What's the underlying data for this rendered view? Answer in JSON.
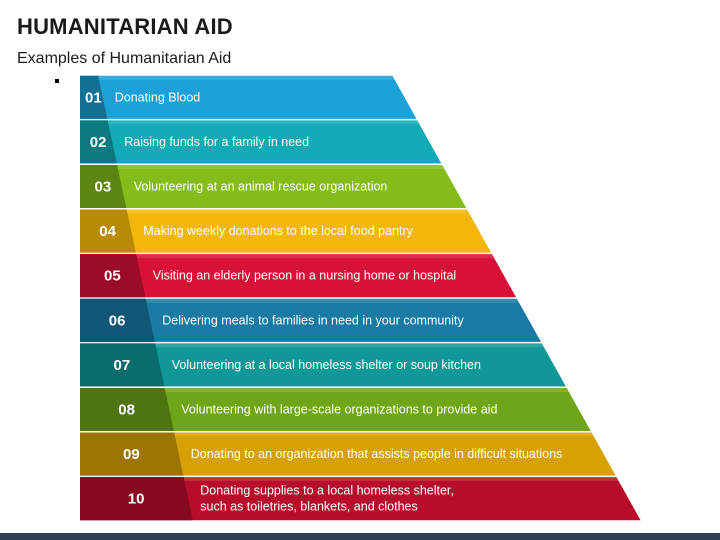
{
  "header": {
    "title": "HUMANITARIAN AID",
    "subtitle": "Examples of Humanitarian Aid"
  },
  "steps": [
    {
      "number": "01",
      "lines": [
        "Donating Blood"
      ],
      "color": "#1ba1d8",
      "dark": "#136f96"
    },
    {
      "number": "02",
      "lines": [
        "Raising funds for a family in need"
      ],
      "color": "#12aab4",
      "dark": "#0c7880"
    },
    {
      "number": "03",
      "lines": [
        "Volunteering at an animal rescue organization"
      ],
      "color": "#84bc1c",
      "dark": "#5d8513"
    },
    {
      "number": "04",
      "lines": [
        "Making weekly donations to the local food pantry"
      ],
      "color": "#f2b70a",
      "dark": "#b88a06"
    },
    {
      "number": "05",
      "lines": [
        "Visiting an elderly person in a nursing home or hospital"
      ],
      "color": "#d81136",
      "dark": "#9a0c27"
    },
    {
      "number": "06",
      "lines": [
        "Delivering meals to families in need in your community"
      ],
      "color": "#1a7aa3",
      "dark": "#115675"
    },
    {
      "number": "07",
      "lines": [
        "Volunteering at a local homeless shelter or soup kitchen"
      ],
      "color": "#109898",
      "dark": "#0a6c6c"
    },
    {
      "number": "08",
      "lines": [
        "Volunteering with large-scale organizations to provide aid"
      ],
      "color": "#6fa518",
      "dark": "#4e7511"
    },
    {
      "number": "09",
      "lines": [
        "Donating to an organization that assists people in difficult situations"
      ],
      "color": "#d7a106",
      "dark": "#9c7504"
    },
    {
      "number": "10",
      "lines": [
        "Donating supplies to a local homeless shelter,",
        "such as toiletries, blankets, and clothes"
      ],
      "color": "#b80e2c",
      "dark": "#850a20"
    }
  ]
}
